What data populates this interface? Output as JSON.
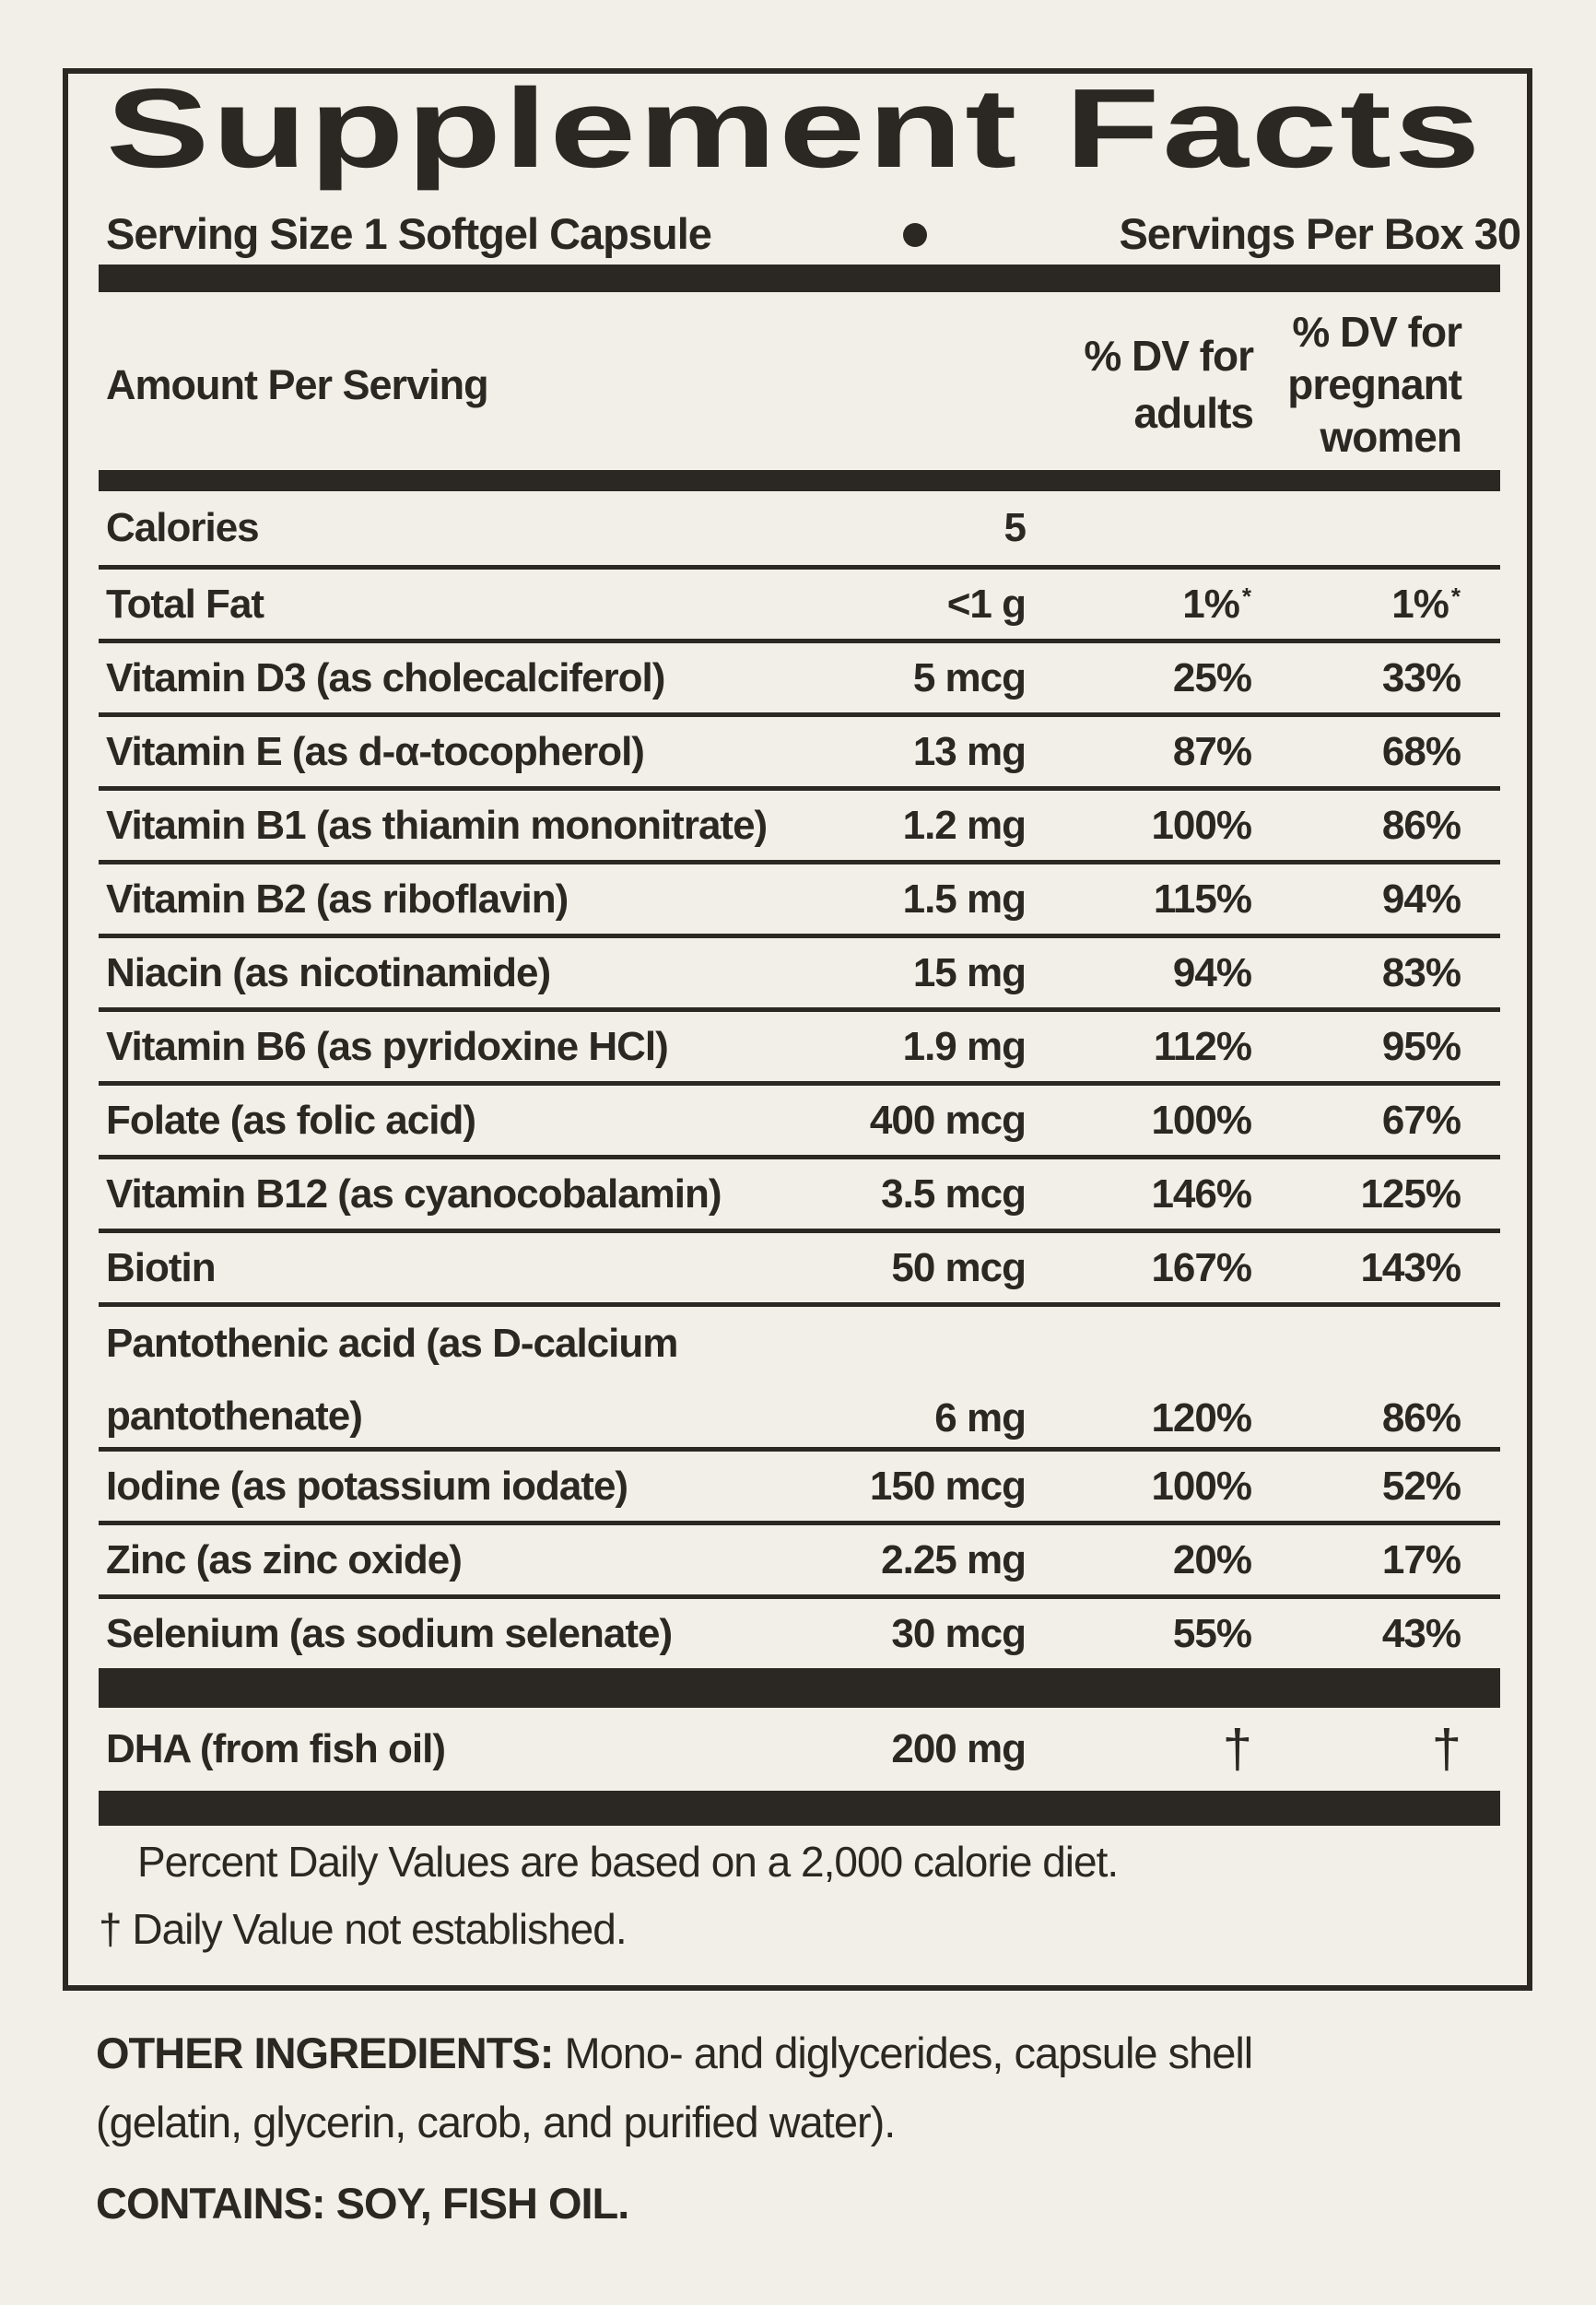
{
  "label": {
    "title": "Supplement Facts",
    "serving_line": {
      "serving_size": "Serving Size 1 Softgel Capsule",
      "bullet": "•",
      "servings_per_box": "Servings Per Box 30"
    },
    "columns": {
      "amount_header": "Amount Per Serving",
      "adults_header_lines": [
        "% DV for",
        "adults"
      ],
      "pregnant_header_lines": [
        "% DV for",
        "pregnant",
        "women"
      ]
    },
    "rows": [
      {
        "name": "Calories",
        "amount": "5",
        "adults": "",
        "pregnant": ""
      },
      {
        "name": "Total Fat",
        "amount": "<1 g",
        "adults": "1%",
        "adults_sup": "*",
        "pregnant": "1%",
        "pregnant_sup": "*"
      },
      {
        "name": "Vitamin D3 (as cholecalciferol)",
        "amount": "5 mcg",
        "adults": "25%",
        "pregnant": "33%"
      },
      {
        "name": "Vitamin E (as d-α-tocopherol)",
        "amount": "13 mg",
        "adults": "87%",
        "pregnant": "68%"
      },
      {
        "name": "Vitamin B1 (as thiamin mononitrate)",
        "amount": "1.2 mg",
        "adults": "100%",
        "pregnant": "86%"
      },
      {
        "name": "Vitamin B2 (as riboflavin)",
        "amount": "1.5 mg",
        "adults": "115%",
        "pregnant": "94%"
      },
      {
        "name": "Niacin (as nicotinamide)",
        "amount": "15 mg",
        "adults": "94%",
        "pregnant": "83%"
      },
      {
        "name": "Vitamin B6 (as pyridoxine HCl)",
        "amount": "1.9 mg",
        "adults": "112%",
        "pregnant": "95%"
      },
      {
        "name": "Folate (as folic acid)",
        "amount": "400 mcg",
        "adults": "100%",
        "pregnant": "67%"
      },
      {
        "name": "Vitamin B12 (as cyanocobalamin)",
        "amount": "3.5 mcg",
        "adults": "146%",
        "pregnant": "125%"
      },
      {
        "name": "Biotin",
        "amount": "50 mcg",
        "adults": "167%",
        "pregnant": "143%"
      },
      {
        "name_lines": [
          "Pantothenic acid (as D-calcium",
          "pantothenate)"
        ],
        "amount": "6 mg",
        "adults": "120%",
        "pregnant": "86%"
      },
      {
        "name": "Iodine (as potassium iodate)",
        "amount": "150 mcg",
        "adults": "100%",
        "pregnant": "52%"
      },
      {
        "name": "Zinc (as zinc oxide)",
        "amount": "2.25 mg",
        "adults": "20%",
        "pregnant": "17%"
      },
      {
        "name": "Selenium (as sodium selenate)",
        "amount": "30 mcg",
        "adults": "55%",
        "pregnant": "43%"
      }
    ],
    "dha_row": {
      "name": "DHA (from fish oil)",
      "amount": "200 mg",
      "adults": "†",
      "pregnant": "†"
    },
    "footnotes": [
      "Percent Daily Values are based on a 2,000 calorie diet.",
      "† Daily Value not established."
    ],
    "other_ingredients": {
      "heading": "OTHER INGREDIENTS:",
      "line1": " Mono- and diglycerides, capsule shell",
      "line2": "(gelatin, glycerin, carob, and purified water)."
    },
    "contains": "CONTAINS: SOY, FISH OIL.",
    "colors": {
      "background": "#f2efe9",
      "ink": "#2b2823"
    }
  }
}
